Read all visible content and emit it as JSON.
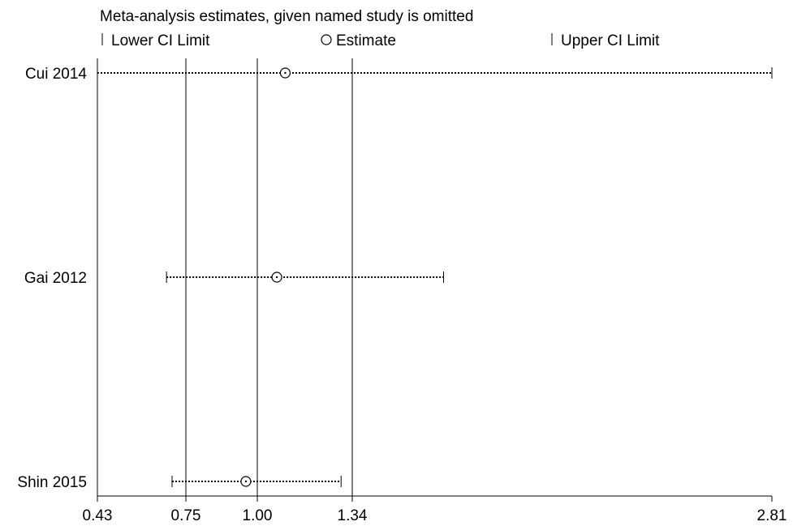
{
  "chart_data": {
    "type": "scatter",
    "title": "Meta-analysis estimates, given named study is omitted",
    "legend": [
      {
        "symbol": "|",
        "label": "Lower CI Limit"
      },
      {
        "symbol": "○",
        "label": "Estimate"
      },
      {
        "symbol": "|",
        "label": "Upper CI Limit"
      }
    ],
    "legend_position": "top",
    "x_axis": {
      "ticks": [
        0.43,
        0.75,
        1.0,
        1.34,
        2.81
      ],
      "tick_labels": [
        "0.43",
        "0.75",
        "1.00",
        "1.34",
        "2.81"
      ],
      "range": [
        0.43,
        2.81
      ],
      "reference_lines": [
        0.43,
        0.75,
        1.0,
        1.34
      ]
    },
    "studies": [
      {
        "label": "Cui 2014",
        "lower": 0.43,
        "estimate": 1.1,
        "upper": 2.81
      },
      {
        "label": "Gai 2012",
        "lower": 0.68,
        "estimate": 1.07,
        "upper": 1.66
      },
      {
        "label": "Shin 2015",
        "lower": 0.7,
        "estimate": 0.96,
        "upper": 1.3
      }
    ]
  }
}
